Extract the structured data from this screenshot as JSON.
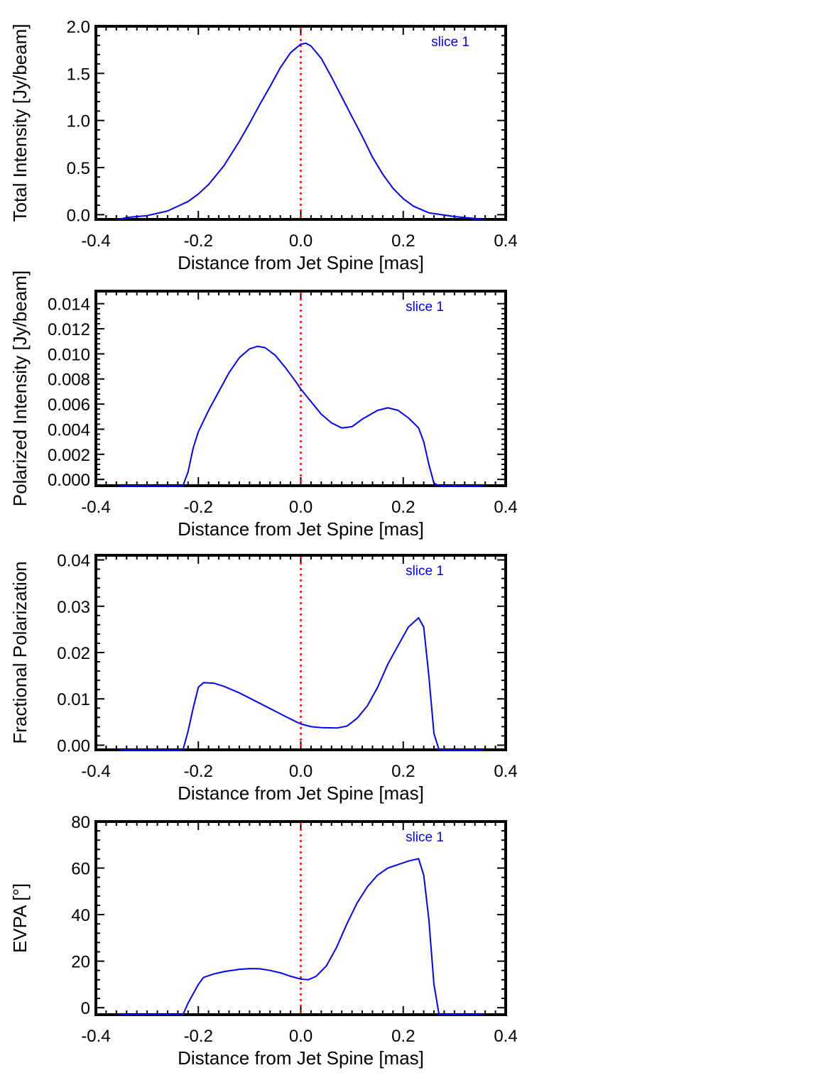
{
  "chart_data": [
    {
      "type": "line",
      "xlabel": "Distance from Jet Spine [mas]",
      "ylabel": "Total Intensity [Jy/beam]",
      "xlim": [
        -0.4,
        0.4
      ],
      "ylim": [
        -0.05,
        2.0
      ],
      "xticks": [
        "-0.4",
        "-0.2",
        "0.0",
        "0.2",
        "0.4"
      ],
      "yticks": [
        {
          "v": 0.0,
          "t": "0.0"
        },
        {
          "v": 0.5,
          "t": "0.5"
        },
        {
          "v": 1.0,
          "t": "1.0"
        },
        {
          "v": 1.5,
          "t": "1.5"
        },
        {
          "v": 2.0,
          "t": "2.0"
        }
      ],
      "annotation": "slice 1",
      "marker_line_x": 0.0,
      "series": [
        {
          "color": "#0000ff",
          "points": [
            [
              -0.355,
              -0.05
            ],
            [
              -0.34,
              -0.03
            ],
            [
              -0.3,
              -0.01
            ],
            [
              -0.26,
              0.04
            ],
            [
              -0.22,
              0.14
            ],
            [
              -0.2,
              0.22
            ],
            [
              -0.18,
              0.32
            ],
            [
              -0.15,
              0.52
            ],
            [
              -0.12,
              0.78
            ],
            [
              -0.1,
              0.97
            ],
            [
              -0.08,
              1.17
            ],
            [
              -0.06,
              1.36
            ],
            [
              -0.04,
              1.56
            ],
            [
              -0.02,
              1.72
            ],
            [
              0.0,
              1.81
            ],
            [
              0.01,
              1.82
            ],
            [
              0.02,
              1.79
            ],
            [
              0.04,
              1.66
            ],
            [
              0.06,
              1.46
            ],
            [
              0.08,
              1.25
            ],
            [
              0.1,
              1.04
            ],
            [
              0.12,
              0.83
            ],
            [
              0.14,
              0.61
            ],
            [
              0.16,
              0.43
            ],
            [
              0.18,
              0.28
            ],
            [
              0.2,
              0.17
            ],
            [
              0.22,
              0.09
            ],
            [
              0.25,
              0.02
            ],
            [
              0.3,
              -0.02
            ],
            [
              0.34,
              -0.04
            ],
            [
              0.355,
              -0.05
            ]
          ]
        }
      ]
    },
    {
      "type": "line",
      "xlabel": "Distance from Jet Spine [mas]",
      "ylabel": "Polarized Intensity [Jy/beam]",
      "xlim": [
        -0.4,
        0.4
      ],
      "ylim": [
        -0.0005,
        0.015
      ],
      "xticks": [
        "-0.4",
        "-0.2",
        "0.0",
        "0.2",
        "0.4"
      ],
      "yticks": [
        {
          "v": 0.0,
          "t": "0.000"
        },
        {
          "v": 0.002,
          "t": "0.002"
        },
        {
          "v": 0.004,
          "t": "0.004"
        },
        {
          "v": 0.006,
          "t": "0.006"
        },
        {
          "v": 0.008,
          "t": "0.008"
        },
        {
          "v": 0.01,
          "t": "0.010"
        },
        {
          "v": 0.012,
          "t": "0.012"
        },
        {
          "v": 0.014,
          "t": "0.014"
        }
      ],
      "annotation": "slice 1",
      "marker_line_x": 0.0,
      "series": [
        {
          "color": "#0000ff",
          "points": [
            [
              -0.355,
              -0.0005
            ],
            [
              -0.23,
              -0.0005
            ],
            [
              -0.22,
              0.0006
            ],
            [
              -0.21,
              0.0025
            ],
            [
              -0.2,
              0.0038
            ],
            [
              -0.18,
              0.0055
            ],
            [
              -0.16,
              0.007
            ],
            [
              -0.14,
              0.0085
            ],
            [
              -0.12,
              0.0097
            ],
            [
              -0.1,
              0.0104
            ],
            [
              -0.085,
              0.0106
            ],
            [
              -0.07,
              0.0105
            ],
            [
              -0.05,
              0.0099
            ],
            [
              -0.03,
              0.0089
            ],
            [
              -0.01,
              0.0078
            ],
            [
              0.0,
              0.0072
            ],
            [
              0.02,
              0.0062
            ],
            [
              0.04,
              0.0052
            ],
            [
              0.06,
              0.0045
            ],
            [
              0.08,
              0.0041
            ],
            [
              0.1,
              0.0042
            ],
            [
              0.12,
              0.0048
            ],
            [
              0.15,
              0.0055
            ],
            [
              0.17,
              0.0057
            ],
            [
              0.19,
              0.0055
            ],
            [
              0.21,
              0.0049
            ],
            [
              0.23,
              0.0041
            ],
            [
              0.24,
              0.003
            ],
            [
              0.25,
              0.0012
            ],
            [
              0.26,
              -0.0003
            ],
            [
              0.27,
              -0.0005
            ],
            [
              0.355,
              -0.0005
            ]
          ]
        }
      ]
    },
    {
      "type": "line",
      "xlabel": "Distance from Jet Spine [mas]",
      "ylabel": "Fractional Polarization",
      "xlim": [
        -0.4,
        0.4
      ],
      "ylim": [
        -0.001,
        0.041
      ],
      "xticks": [
        "-0.4",
        "-0.2",
        "0.0",
        "0.2",
        "0.4"
      ],
      "yticks": [
        {
          "v": 0.0,
          "t": "0.00"
        },
        {
          "v": 0.01,
          "t": "0.01"
        },
        {
          "v": 0.02,
          "t": "0.02"
        },
        {
          "v": 0.03,
          "t": "0.03"
        },
        {
          "v": 0.04,
          "t": "0.04"
        }
      ],
      "annotation": "slice 1",
      "marker_line_x": 0.0,
      "series": [
        {
          "color": "#0000ff",
          "points": [
            [
              -0.355,
              -0.001
            ],
            [
              -0.23,
              -0.001
            ],
            [
              -0.22,
              0.003
            ],
            [
              -0.21,
              0.008
            ],
            [
              -0.2,
              0.0125
            ],
            [
              -0.19,
              0.0135
            ],
            [
              -0.17,
              0.0134
            ],
            [
              -0.15,
              0.0127
            ],
            [
              -0.12,
              0.0113
            ],
            [
              -0.09,
              0.0096
            ],
            [
              -0.06,
              0.0079
            ],
            [
              -0.03,
              0.0062
            ],
            [
              -0.01,
              0.0051
            ],
            [
              0.0,
              0.0046
            ],
            [
              0.02,
              0.004
            ],
            [
              0.04,
              0.0038
            ],
            [
              0.07,
              0.0037
            ],
            [
              0.09,
              0.0041
            ],
            [
              0.11,
              0.0058
            ],
            [
              0.13,
              0.0085
            ],
            [
              0.15,
              0.0125
            ],
            [
              0.17,
              0.0175
            ],
            [
              0.19,
              0.0215
            ],
            [
              0.21,
              0.0255
            ],
            [
              0.23,
              0.0275
            ],
            [
              0.24,
              0.0255
            ],
            [
              0.25,
              0.015
            ],
            [
              0.26,
              0.0025
            ],
            [
              0.27,
              -0.001
            ],
            [
              0.355,
              -0.001
            ]
          ]
        }
      ]
    },
    {
      "type": "line",
      "xlabel": "Distance from Jet Spine [mas]",
      "ylabel": "EVPA [°]",
      "xlim": [
        -0.4,
        0.4
      ],
      "ylim": [
        -3,
        80
      ],
      "xticks": [
        "-0.4",
        "-0.2",
        "0.0",
        "0.2",
        "0.4"
      ],
      "yticks": [
        {
          "v": 0,
          "t": "0"
        },
        {
          "v": 20,
          "t": "20"
        },
        {
          "v": 40,
          "t": "40"
        },
        {
          "v": 60,
          "t": "60"
        },
        {
          "v": 80,
          "t": "80"
        }
      ],
      "annotation": "slice 1",
      "marker_line_x": 0.0,
      "series": [
        {
          "color": "#0000ff",
          "points": [
            [
              -0.355,
              -3
            ],
            [
              -0.23,
              -3
            ],
            [
              -0.22,
              2
            ],
            [
              -0.2,
              10
            ],
            [
              -0.19,
              13
            ],
            [
              -0.17,
              14.5
            ],
            [
              -0.15,
              15.5
            ],
            [
              -0.12,
              16.5
            ],
            [
              -0.1,
              16.8
            ],
            [
              -0.08,
              16.7
            ],
            [
              -0.06,
              16
            ],
            [
              -0.04,
              15
            ],
            [
              -0.02,
              13.5
            ],
            [
              0.0,
              12.3
            ],
            [
              0.015,
              12
            ],
            [
              0.03,
              13.5
            ],
            [
              0.05,
              18
            ],
            [
              0.07,
              26
            ],
            [
              0.09,
              36
            ],
            [
              0.11,
              45
            ],
            [
              0.13,
              52
            ],
            [
              0.15,
              57
            ],
            [
              0.17,
              60
            ],
            [
              0.19,
              61.5
            ],
            [
              0.21,
              63
            ],
            [
              0.23,
              64
            ],
            [
              0.24,
              57
            ],
            [
              0.25,
              38
            ],
            [
              0.26,
              10
            ],
            [
              0.27,
              -3
            ],
            [
              0.355,
              -3
            ]
          ]
        }
      ]
    }
  ]
}
